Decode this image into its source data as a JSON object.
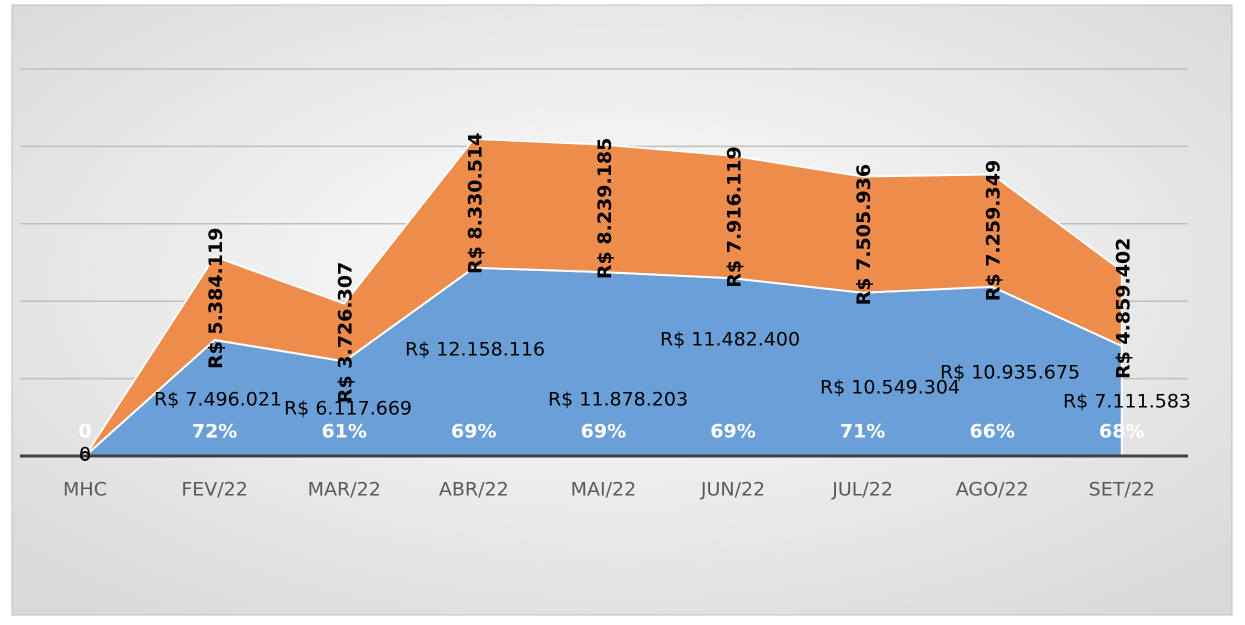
{
  "chart_data": {
    "type": "stacked_area",
    "categories": [
      "MHC",
      "FEV/22",
      "MAR/22",
      "ABR/22",
      "MAI/22",
      "JUN/22",
      "JUL/22",
      "AGO/22",
      "SET/22"
    ],
    "series": [
      {
        "color": "#6a9fd7",
        "values": [
          0,
          7496021,
          6117669,
          12158116,
          11878203,
          11482400,
          10549304,
          10935675,
          7111583
        ],
        "value_labels": [
          "0",
          "R$ 7.496.021",
          "R$ 6.117.669",
          "R$ 12.158.116",
          "R$ 11.878.203",
          "R$ 11.482.400",
          "R$ 10.549.304",
          "R$ 10.935.675",
          "R$ 7.111.583"
        ]
      },
      {
        "color": "#ee8c4b",
        "values": [
          0,
          5384119,
          3726307,
          8330514,
          8239185,
          7916119,
          7505936,
          7259349,
          4859402
        ],
        "value_labels": [
          null,
          "R$ 5.384.119",
          "R$ 3.726.307",
          "R$ 8.330.514",
          "R$ 8.239.185",
          "R$ 7.916.119",
          "R$ 7.505.936",
          "R$ 7.259.349",
          "R$ 4.859.402"
        ]
      }
    ],
    "percentages": [
      0,
      72,
      61,
      69,
      69,
      69,
      71,
      66,
      68
    ],
    "percentage_labels": [
      "0",
      "72%",
      "61%",
      "69%",
      "69%",
      "69%",
      "71%",
      "66%",
      "68%"
    ],
    "ylim": [
      0,
      25000000
    ],
    "yticks": [
      0,
      5000000,
      10000000,
      15000000,
      20000000,
      25000000
    ],
    "grid": true
  }
}
